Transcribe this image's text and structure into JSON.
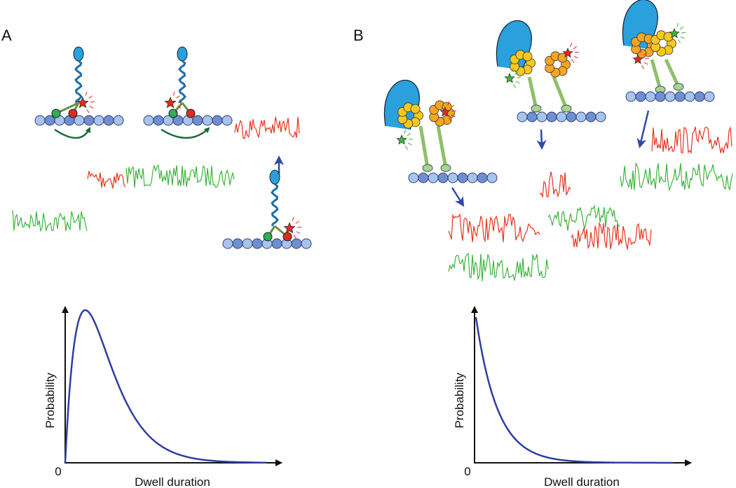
{
  "panels": [
    {
      "label": "A",
      "plot": {
        "y_label": "Probability",
        "origin": "0",
        "x_label": "Dwell duration"
      }
    },
    {
      "label": "B",
      "plot": {
        "y_label": "Probability",
        "origin": "0",
        "x_label": "Dwell duration"
      }
    }
  ]
}
